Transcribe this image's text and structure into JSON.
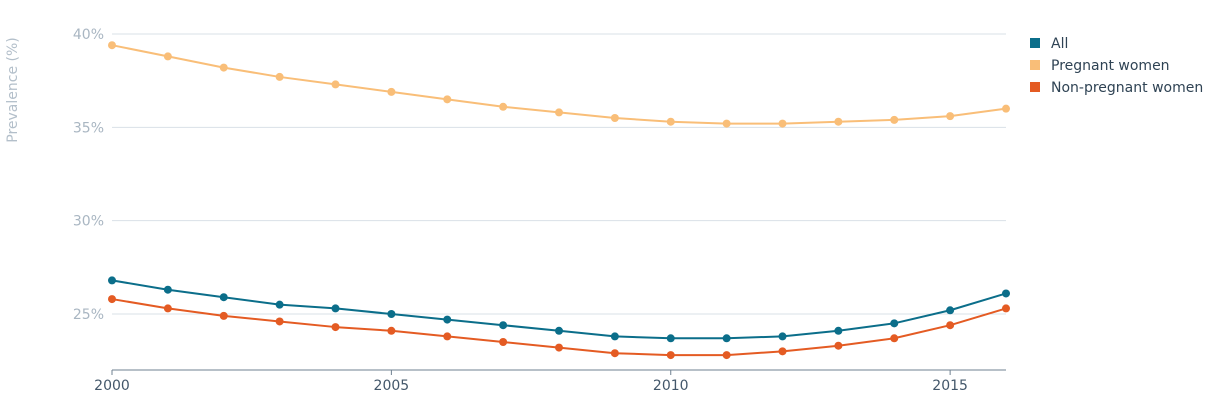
{
  "chart_data": {
    "type": "line",
    "ylabel": "Prevalence (%)",
    "y_ticks": [
      "25%",
      "30%",
      "35%",
      "40%"
    ],
    "y_tick_values": [
      25,
      30,
      35,
      40
    ],
    "x_ticks": [
      "2000",
      "2005",
      "2010",
      "2015"
    ],
    "x_tick_values": [
      2000,
      2005,
      2010,
      2015
    ],
    "xlim": [
      2000,
      2016
    ],
    "ylim": [
      22,
      40
    ],
    "grid": true,
    "legend_position": "top-right",
    "x": [
      2000,
      2001,
      2002,
      2003,
      2004,
      2005,
      2006,
      2007,
      2008,
      2009,
      2010,
      2011,
      2012,
      2013,
      2014,
      2015,
      2016
    ],
    "series": [
      {
        "name": "All",
        "color": "#0b6e8a",
        "values": [
          26.8,
          26.3,
          25.9,
          25.5,
          25.3,
          25.0,
          24.7,
          24.4,
          24.1,
          23.8,
          23.7,
          23.7,
          23.8,
          24.1,
          24.5,
          25.2,
          26.1
        ]
      },
      {
        "name": "Pregnant women",
        "color": "#f9be78",
        "values": [
          39.4,
          38.8,
          38.2,
          37.7,
          37.3,
          36.9,
          36.5,
          36.1,
          35.8,
          35.5,
          35.3,
          35.2,
          35.2,
          35.3,
          35.4,
          35.6,
          36.0
        ]
      },
      {
        "name": "Non-pregnant women",
        "color": "#e45b23",
        "values": [
          25.8,
          25.3,
          24.9,
          24.6,
          24.3,
          24.1,
          23.8,
          23.5,
          23.2,
          22.9,
          22.8,
          22.8,
          23.0,
          23.3,
          23.7,
          24.4,
          25.3
        ]
      }
    ]
  }
}
